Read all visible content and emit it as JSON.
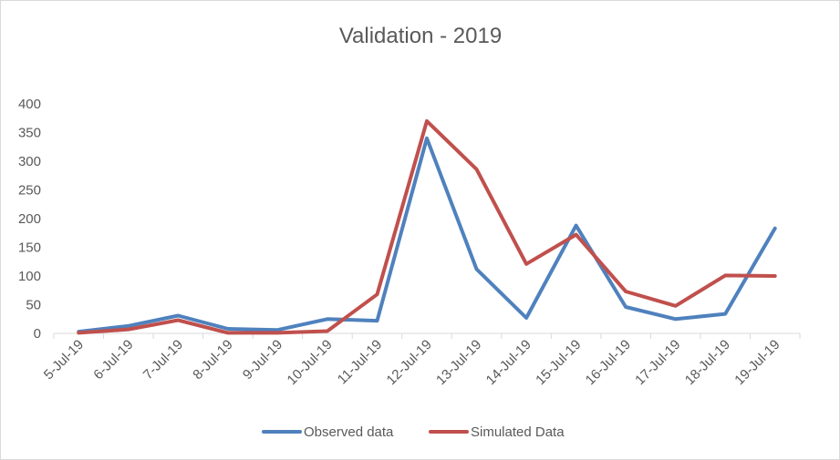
{
  "chart_data": {
    "type": "line",
    "title": "Validation - 2019",
    "xlabel": "",
    "ylabel": "",
    "categories": [
      "5-Jul-19",
      "6-Jul-19",
      "7-Jul-19",
      "8-Jul-19",
      "9-Jul-19",
      "10-Jul-19",
      "11-Jul-19",
      "12-Jul-19",
      "13-Jul-19",
      "14-Jul-19",
      "15-Jul-19",
      "16-Jul-19",
      "17-Jul-19",
      "18-Jul-19",
      "19-Jul-19"
    ],
    "ylim": [
      0,
      400
    ],
    "yticks": [
      0,
      50,
      100,
      150,
      200,
      250,
      300,
      350,
      400
    ],
    "grid": false,
    "legend_position": "bottom",
    "series": [
      {
        "name": "Observed data",
        "color": "#4f81bd",
        "values": [
          3,
          13,
          31,
          8,
          6,
          25,
          22,
          340,
          112,
          27,
          188,
          46,
          25,
          34,
          183
        ]
      },
      {
        "name": "Simulated Data",
        "color": "#c0504d",
        "values": [
          1,
          7,
          23,
          1,
          1,
          4,
          68,
          370,
          286,
          121,
          172,
          73,
          48,
          101,
          100
        ]
      }
    ]
  }
}
